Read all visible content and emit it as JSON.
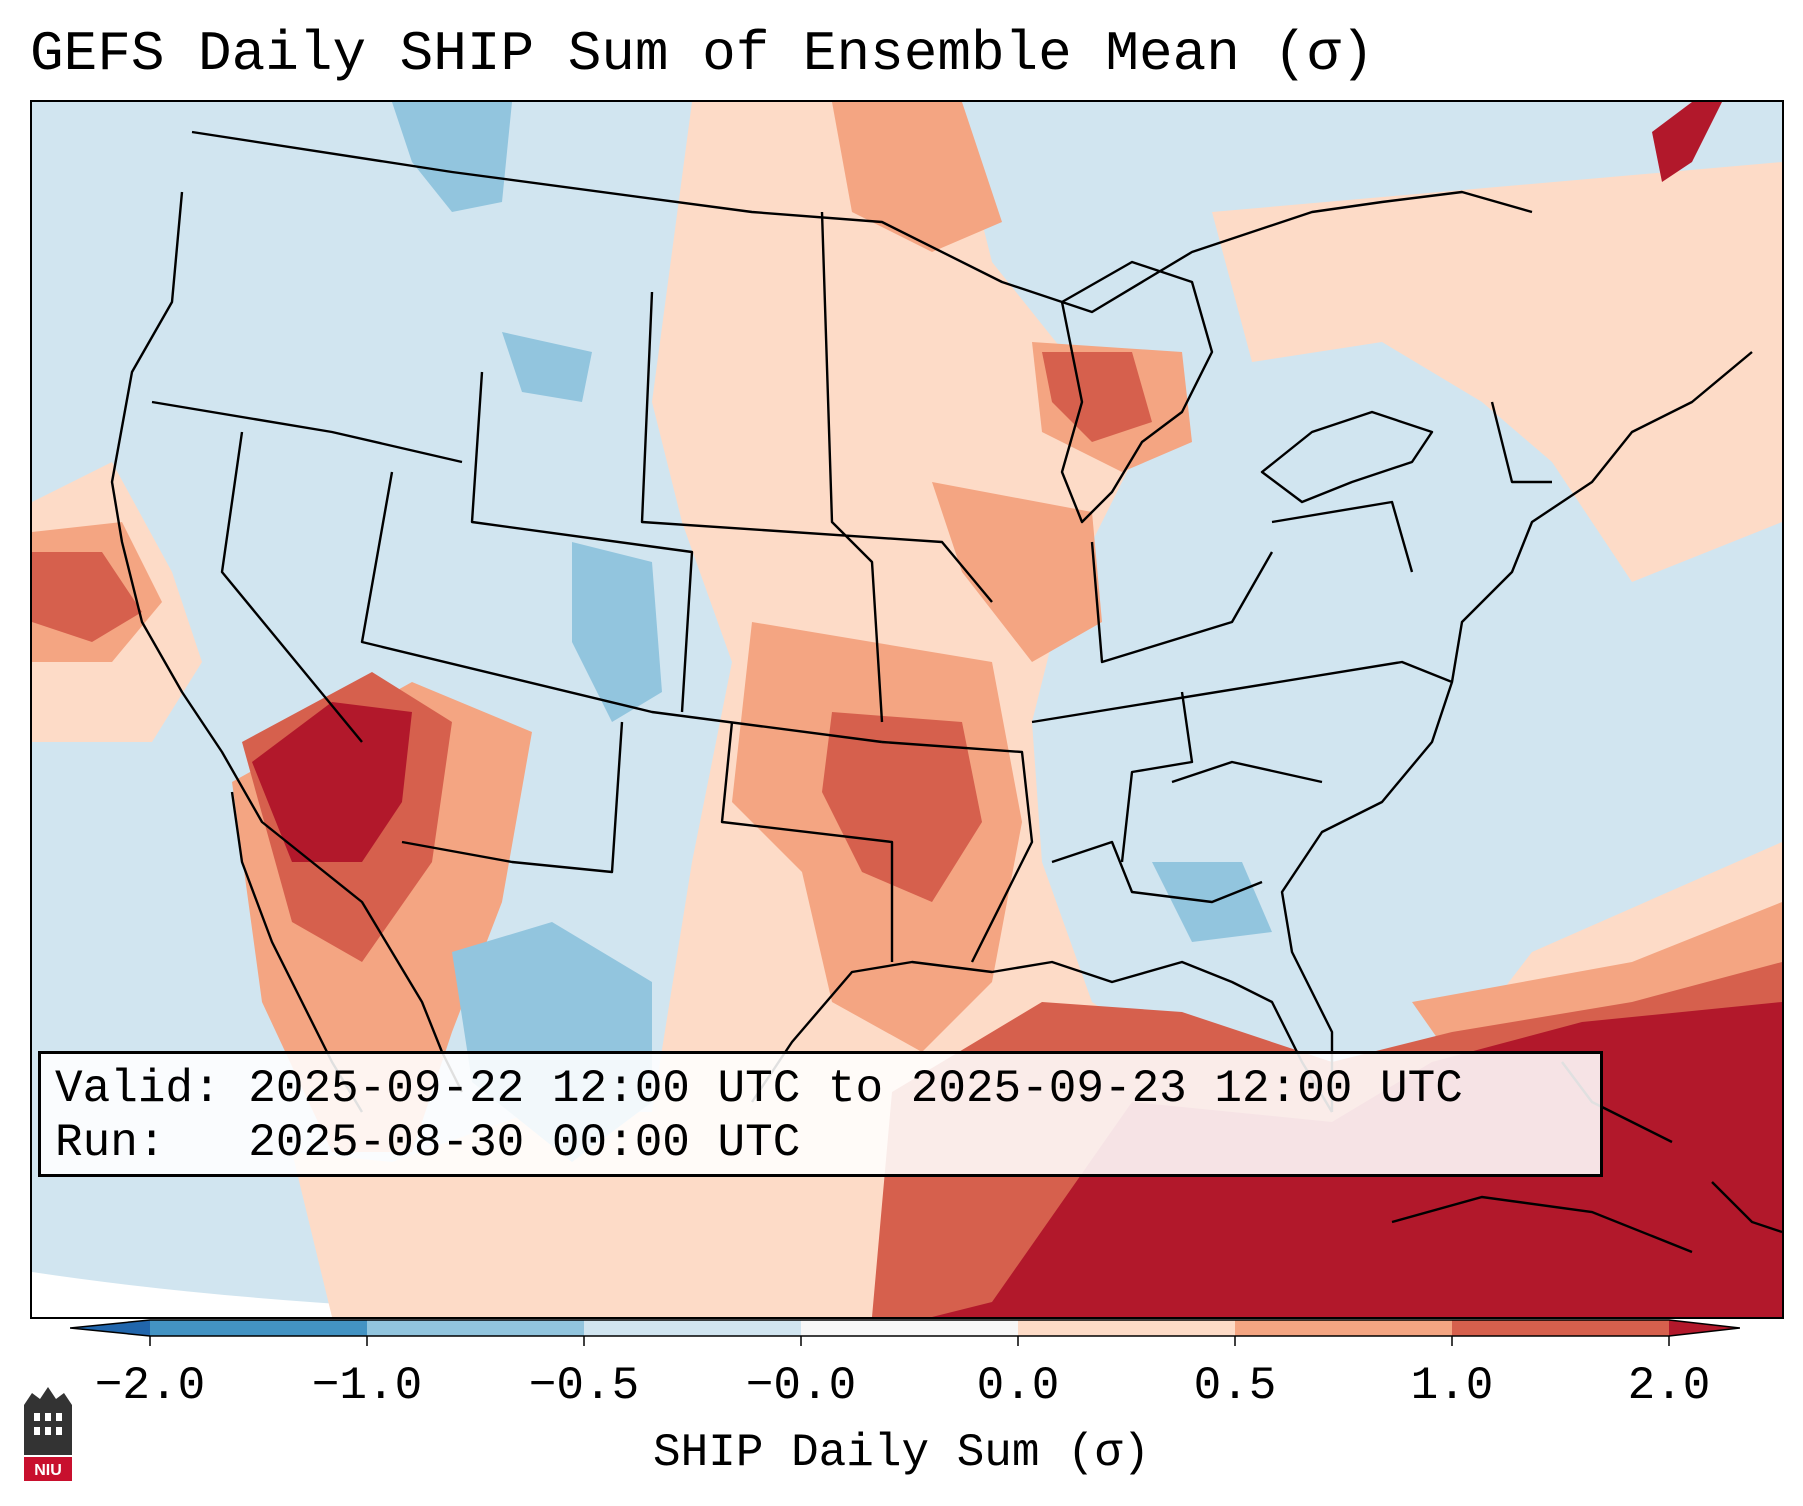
{
  "title": "GEFS Daily SHIP Sum of Ensemble Mean (σ)",
  "info": {
    "valid_line": "Valid: 2025-09-22 12:00 UTC to 2025-09-23 12:00 UTC",
    "run_line": "Run:   2025-08-30 00:00 UTC"
  },
  "colorbar": {
    "label": "SHIP Daily Sum (σ)",
    "ticks": [
      "−2.0",
      "−1.0",
      "−0.5",
      "−0.0",
      "0.0",
      "0.5",
      "1.0",
      "2.0"
    ],
    "bins": [
      {
        "range": "< -2.0",
        "color": "#2166ac"
      },
      {
        "range": "-2.0 to -1.0",
        "color": "#4393c3"
      },
      {
        "range": "-1.0 to -0.5",
        "color": "#92c5de"
      },
      {
        "range": "-0.5 to -0.0",
        "color": "#d1e5f0"
      },
      {
        "range": "-0.0 to 0.0",
        "color": "#f7f7f7"
      },
      {
        "range": "0.0 to 0.5",
        "color": "#fddbc7"
      },
      {
        "range": "0.5 to 1.0",
        "color": "#f4a582"
      },
      {
        "range": "1.0 to 2.0",
        "color": "#d6604d"
      },
      {
        "range": "> 2.0",
        "color": "#b2182b"
      }
    ]
  },
  "map": {
    "region": "CONUS",
    "anomaly_areas": [
      {
        "name": "desert-southwest",
        "level": "> 2.0"
      },
      {
        "name": "southern-plains",
        "level": "1.0 to 2.0"
      },
      {
        "name": "upper-midwest",
        "level": "0.5 to 1.0"
      },
      {
        "name": "gulf-of-mexico",
        "level": "1.0 to 2.0"
      },
      {
        "name": "caribbean",
        "level": "> 2.0"
      },
      {
        "name": "northern-rockies",
        "level": "-1.0 to -0.5"
      },
      {
        "name": "colorado",
        "level": "-1.0 to -0.5"
      },
      {
        "name": "mexico-sierra-madre",
        "level": "-1.0 to -0.5"
      },
      {
        "name": "alabama-georgia",
        "level": "-1.0 to -0.5"
      }
    ]
  },
  "logo": {
    "text": "NIU"
  }
}
